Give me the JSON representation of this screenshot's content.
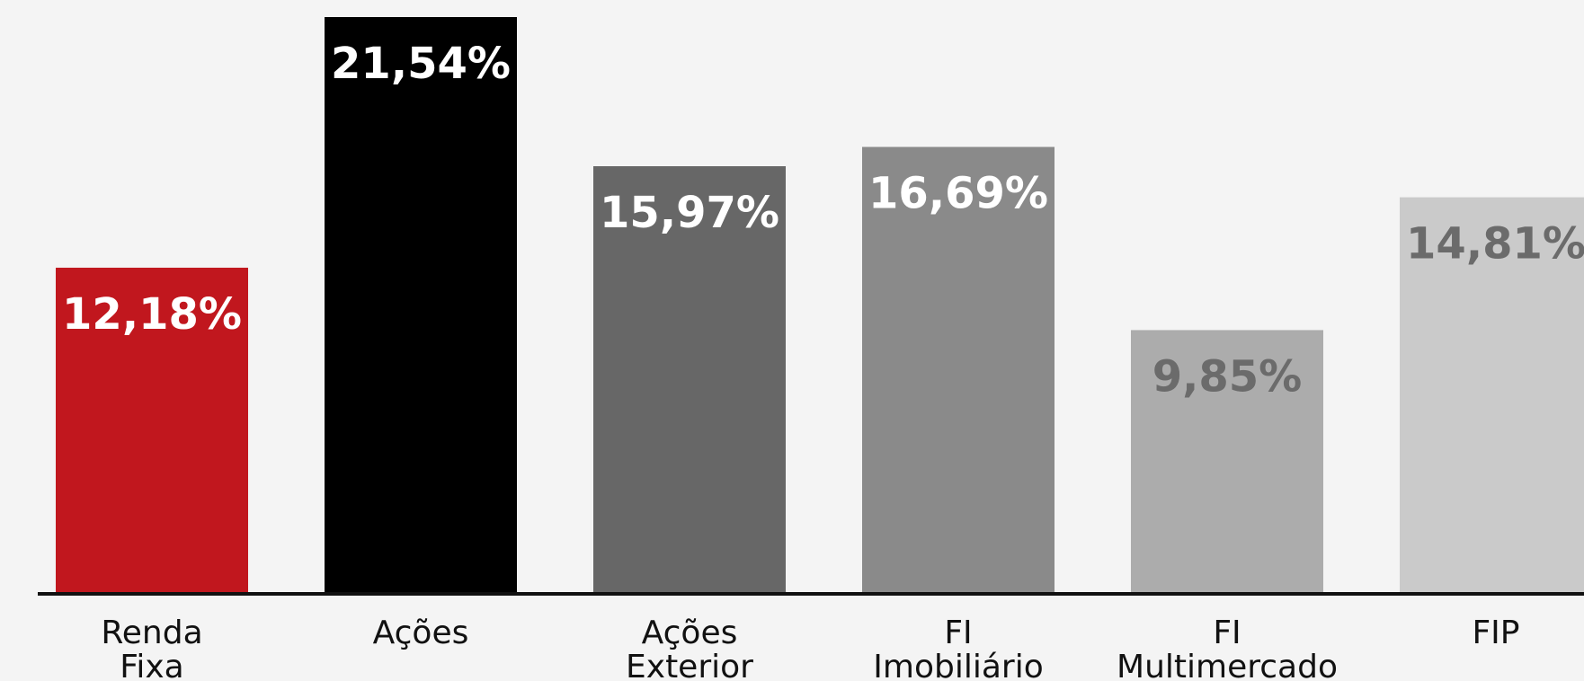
{
  "chart_data": {
    "type": "bar",
    "categories": [
      [
        "Renda",
        "Fixa"
      ],
      [
        "Ações"
      ],
      [
        "Ações",
        "Exterior"
      ],
      [
        "FI",
        "Imobiliário"
      ],
      [
        "FI",
        "Multimercado"
      ],
      [
        "FIP"
      ]
    ],
    "values": [
      12.18,
      21.54,
      15.97,
      16.69,
      9.85,
      14.81
    ],
    "value_labels": [
      "12,18%",
      "21,54%",
      "15,97%",
      "16,69%",
      "9,85%",
      "14,81%"
    ],
    "bar_colors": [
      "#c1171e",
      "#000000",
      "#676767",
      "#8a8a8a",
      "#acacac",
      "#cacaca"
    ],
    "label_colors": [
      "#ffffff",
      "#ffffff",
      "#ffffff",
      "#ffffff",
      "#6b6b6b",
      "#6b6b6b"
    ],
    "axis_color": "#111111",
    "title": "",
    "xlabel": "",
    "ylabel": "",
    "ylim": [
      0,
      21.54
    ],
    "grid": false
  }
}
